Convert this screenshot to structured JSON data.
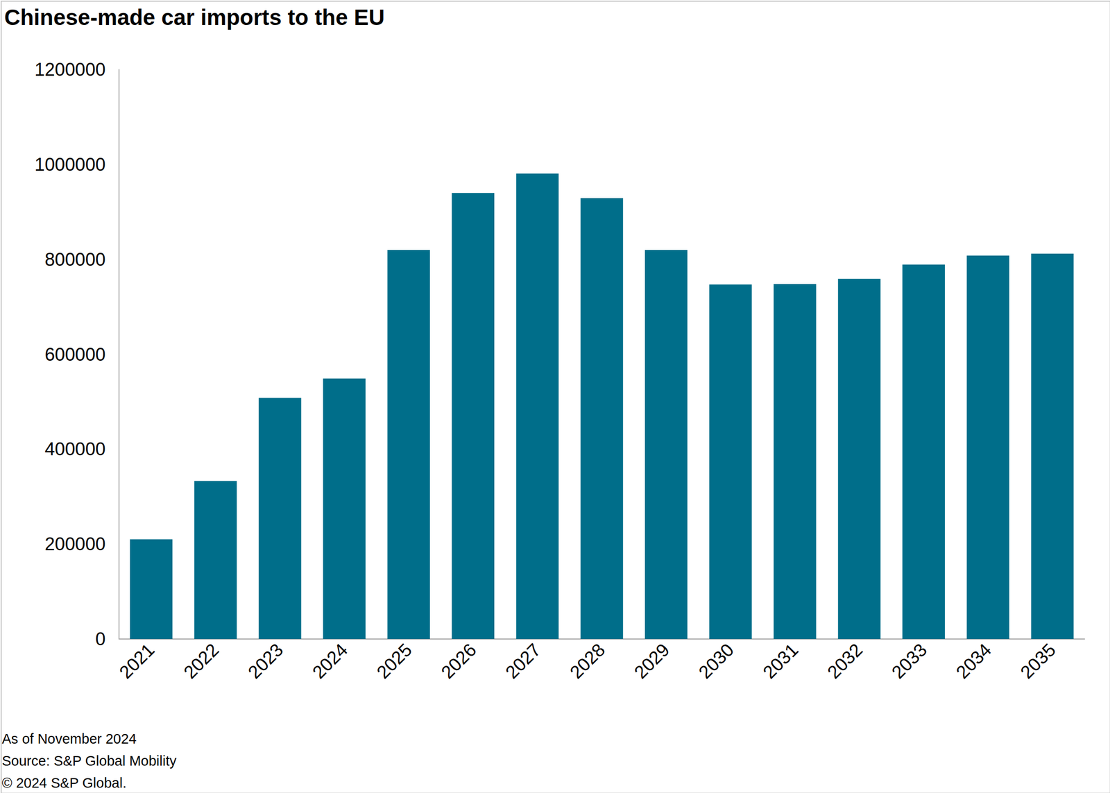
{
  "chart_data": {
    "type": "bar",
    "title": "Chinese-made car imports to the EU",
    "categories": [
      "2021",
      "2022",
      "2023",
      "2024",
      "2025",
      "2026",
      "2027",
      "2028",
      "2029",
      "2030",
      "2031",
      "2032",
      "2033",
      "2034",
      "2035"
    ],
    "values": [
      210000,
      333000,
      508000,
      549000,
      820000,
      940000,
      981000,
      929000,
      820000,
      747000,
      748000,
      759000,
      789000,
      808000,
      812000
    ],
    "color": "#006e8a",
    "ylim": [
      0,
      1200000
    ],
    "yticks": [
      0,
      200000,
      400000,
      600000,
      800000,
      1000000,
      1200000
    ],
    "grid": false,
    "notes": [
      "As of November 2024",
      "Source: S&P Global Mobility",
      "© 2024 S&P Global."
    ]
  }
}
